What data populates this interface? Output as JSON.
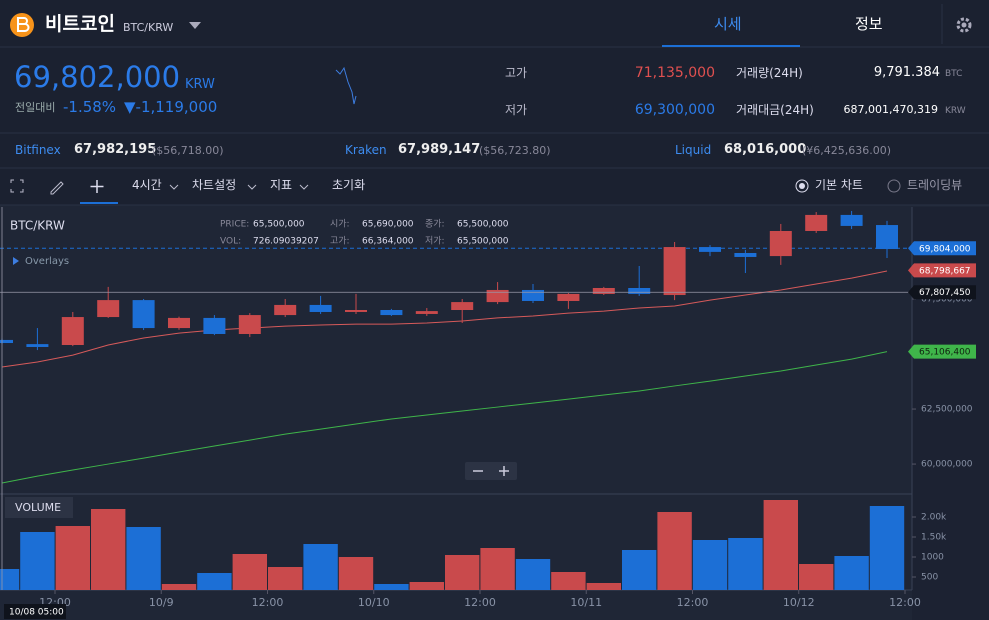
{
  "header": {
    "title": "비트코인",
    "pair": "BTC/KRW",
    "tabs": [
      "시세",
      "정보"
    ]
  },
  "ticker": {
    "price": "69,802,000",
    "currency": "KRW",
    "change_label": "전일대비",
    "change_pct": "-1.58%",
    "change_abs": "▼-1,119,000",
    "high_label": "고가",
    "high": "71,135,000",
    "low_label": "저가",
    "low": "69,300,000",
    "volume_label": "거래량(24H)",
    "volume": "9,791.384",
    "volume_unit": "BTC",
    "amount_label": "거래대금(24H)",
    "amount": "687,001,470,319",
    "amount_unit": "KRW"
  },
  "exchanges": [
    {
      "name": "Bitfinex",
      "price": "67,982,195",
      "usd": "($56,718.00)"
    },
    {
      "name": "Kraken",
      "price": "67,989,147",
      "usd": "($56,723.80)"
    },
    {
      "name": "Liquid",
      "price": "68,016,000",
      "usd": "(¥6,425,636.00)"
    }
  ],
  "toolbar": {
    "interval": "4시간",
    "settings": "차트설정",
    "indicators": "지표",
    "reset": "초기화",
    "basic_chart": "기본 차트",
    "tradingview": "트레이딩뷰"
  },
  "chart_data": {
    "type": "candlestick",
    "symbol": "BTC/KRW",
    "info": [
      {
        "label": "PRICE:",
        "value": "65,500,000"
      },
      {
        "label": "VOL:",
        "value": "726.09039207"
      },
      {
        "label": "시가:",
        "value": "65,690,000"
      },
      {
        "label": "고가:",
        "value": "66,364,000"
      },
      {
        "label": "종가:",
        "value": "65,500,000"
      },
      {
        "label": "저가:",
        "value": "65,500,000"
      }
    ],
    "overlays": "Overlays",
    "up_color": "#c94a4c",
    "down_color": "#1c6fd6",
    "open": [
      65640000,
      65450000,
      65410000,
      66680000,
      67450000,
      66180000,
      66640000,
      65910000,
      66770000,
      67230000,
      66910000,
      67000000,
      66820000,
      67000000,
      67360000,
      67910000,
      67410000,
      67730000,
      68000000,
      67680000,
      69860000,
      69590000,
      69450000,
      70590000,
      71320000,
      70860000
    ],
    "high": [
      65700000,
      66180000,
      66910000,
      68050000,
      67500000,
      66700000,
      66770000,
      66860000,
      67500000,
      67640000,
      67730000,
      67050000,
      67090000,
      67500000,
      68270000,
      68180000,
      67770000,
      68050000,
      69000000,
      70090000,
      69950000,
      69730000,
      70910000,
      71450000,
      71500000,
      71050000
    ],
    "low": [
      65450000,
      65180000,
      65360000,
      66640000,
      66090000,
      66100000,
      65860000,
      65770000,
      66680000,
      66820000,
      66820000,
      66730000,
      66730000,
      66410000,
      67270000,
      67320000,
      67050000,
      67680000,
      67640000,
      67450000,
      69450000,
      68680000,
      69050000,
      70500000,
      70680000,
      69360000
    ],
    "close": [
      65500000,
      65320000,
      66680000,
      67450000,
      66180000,
      66640000,
      65910000,
      66770000,
      67230000,
      66910000,
      67000000,
      66770000,
      66950000,
      67360000,
      67910000,
      67410000,
      67730000,
      68000000,
      67730000,
      69860000,
      69640000,
      69410000,
      70590000,
      71320000,
      70820000,
      69770000
    ],
    "series": [
      {
        "color": "#d65a5a",
        "values": [
          64410000,
          64640000,
          64950000,
          65410000,
          65730000,
          65950000,
          66090000,
          66180000,
          66270000,
          66320000,
          66360000,
          66360000,
          66410000,
          66500000,
          66640000,
          66730000,
          66860000,
          66950000,
          67090000,
          67180000,
          67450000,
          67680000,
          67910000,
          68180000,
          68450000,
          68770000
        ]
      },
      {
        "color": "#3fb54a",
        "values": [
          59140000,
          59450000,
          59730000,
          60000000,
          60270000,
          60550000,
          60820000,
          61090000,
          61360000,
          61590000,
          61820000,
          62050000,
          62230000,
          62410000,
          62590000,
          62770000,
          62950000,
          63140000,
          63320000,
          63550000,
          63770000,
          64000000,
          64230000,
          64500000,
          64770000,
          65110000
        ]
      }
    ],
    "price_tags": [
      {
        "value": 69804000,
        "label": "69,804,000",
        "color": "#1c6fd6"
      },
      {
        "value": 68798667,
        "label": "68,798,667",
        "color": "#c94a4c"
      },
      {
        "value": 65106400,
        "label": "65,106,400",
        "color": "#3fb54a"
      }
    ],
    "crosshair": {
      "value": 67807450,
      "label": "67,807,450",
      "time": "10/08 05:00"
    },
    "ylim": [
      58640000,
      71680000
    ],
    "yticks": [
      {
        "value": 67500000,
        "label": "67,500,000"
      },
      {
        "value": 62500000,
        "label": "62,500,000"
      },
      {
        "value": 60000000,
        "label": "60,000,000"
      }
    ],
    "xticks": [
      "12:00",
      "10/9",
      "12:00",
      "10/10",
      "12:00",
      "10/11",
      "12:00",
      "10/12",
      "12:00"
    ],
    "volume": {
      "title": "VOLUME",
      "values": [
        700,
        1625,
        1775,
        2200,
        1750,
        325,
        600,
        1075,
        750,
        1325,
        1000,
        325,
        375,
        1050,
        1225,
        950,
        625,
        350,
        1175,
        2125,
        1425,
        1475,
        2425,
        825,
        1025,
        2275
      ],
      "ylim": [
        0,
        2500
      ],
      "yticks": [
        {
          "value": 2000,
          "label": "2.00k"
        },
        {
          "value": 1500,
          "label": "1.50k"
        },
        1000,
        500
      ]
    }
  }
}
